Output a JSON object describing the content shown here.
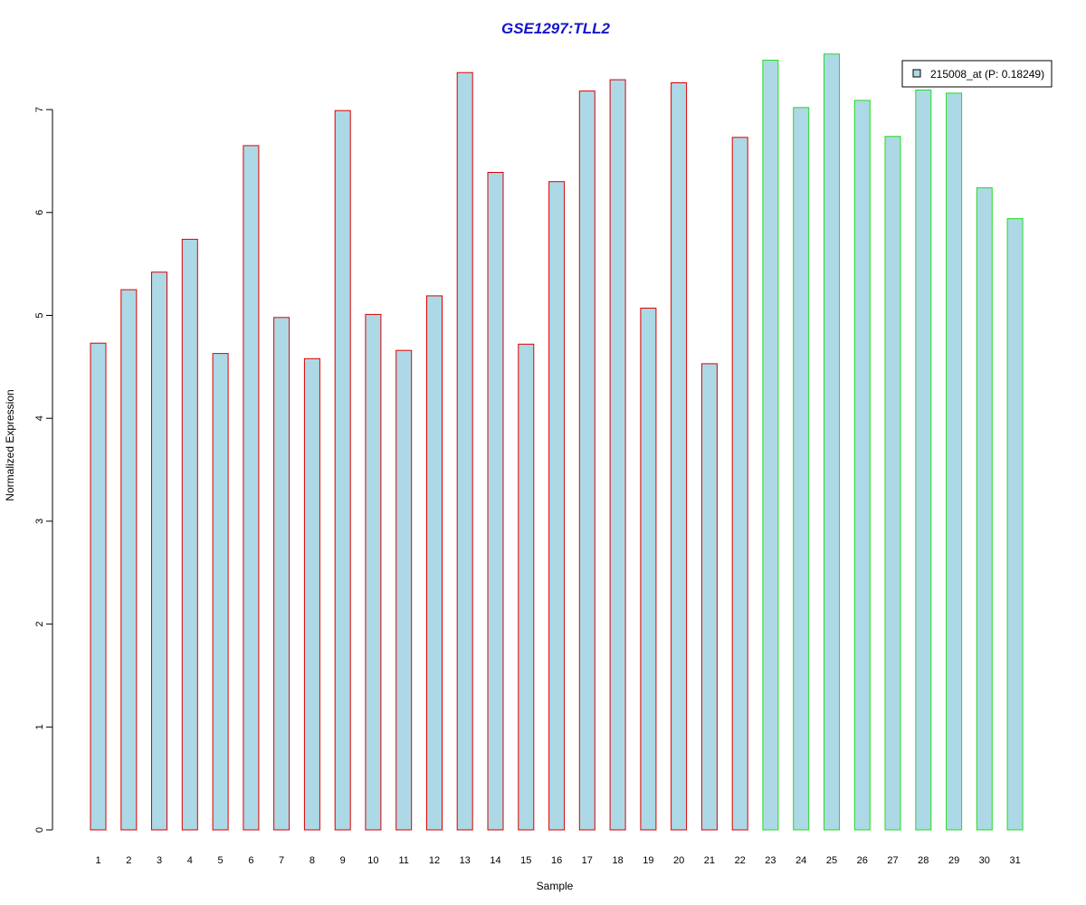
{
  "chart_data": {
    "type": "bar",
    "title": "GSE1297:TLL2",
    "xlabel": "Sample",
    "ylabel": "Normalized Expression",
    "categories": [
      "1",
      "2",
      "3",
      "4",
      "5",
      "6",
      "7",
      "8",
      "9",
      "10",
      "11",
      "12",
      "13",
      "14",
      "15",
      "16",
      "17",
      "18",
      "19",
      "20",
      "21",
      "22",
      "23",
      "24",
      "25",
      "26",
      "27",
      "28",
      "29",
      "30",
      "31"
    ],
    "series": [
      {
        "name": "215008_at (P: 0.18249)",
        "values": [
          4.73,
          5.25,
          5.42,
          5.74,
          4.63,
          6.65,
          4.98,
          4.58,
          6.99,
          5.01,
          4.66,
          5.19,
          7.36,
          6.39,
          4.72,
          6.3,
          7.18,
          7.29,
          5.07,
          7.26,
          4.53,
          6.73,
          7.48,
          7.02,
          7.54,
          7.09,
          6.74,
          7.19,
          7.16,
          6.24,
          5.94
        ]
      }
    ],
    "group_edge_colors": [
      "#dd0000",
      "#dd0000",
      "#dd0000",
      "#dd0000",
      "#dd0000",
      "#dd0000",
      "#dd0000",
      "#dd0000",
      "#dd0000",
      "#dd0000",
      "#dd0000",
      "#dd0000",
      "#dd0000",
      "#dd0000",
      "#dd0000",
      "#dd0000",
      "#dd0000",
      "#dd0000",
      "#dd0000",
      "#dd0000",
      "#dd0000",
      "#dd0000",
      "#22dd22",
      "#22dd22",
      "#22dd22",
      "#22dd22",
      "#22dd22",
      "#22dd22",
      "#22dd22",
      "#22dd22",
      "#22dd22"
    ],
    "yticks": [
      0,
      1,
      2,
      3,
      4,
      5,
      6,
      7
    ],
    "ylim": [
      0,
      7.54
    ],
    "grid": false,
    "legend_position": "top-right",
    "colors": {
      "bar_fill": "#add8e6",
      "title": "#1515cc",
      "axis": "#000000"
    }
  }
}
